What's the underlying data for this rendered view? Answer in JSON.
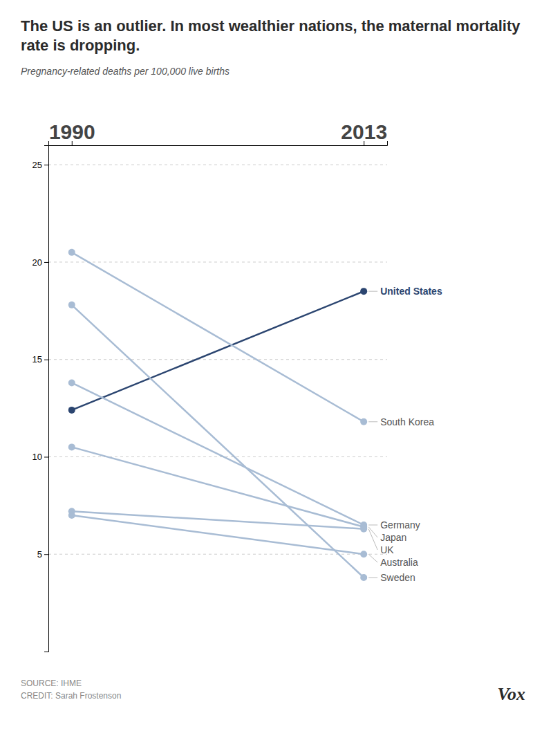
{
  "chart_data": {
    "type": "slope",
    "title": "The US is an outlier. In most wealthier nations, the maternal mortality rate is dropping.",
    "subtitle": "Pregnancy-related deaths per 100,000 live births",
    "categories": [
      "1990",
      "2013"
    ],
    "series": [
      {
        "name": "United States",
        "color": "#2b4570",
        "values": [
          12.4,
          18.5
        ]
      },
      {
        "name": "South Korea",
        "color": "#a8bcd4",
        "values": [
          20.5,
          11.8
        ]
      },
      {
        "name": "Germany",
        "color": "#a8bcd4",
        "values": [
          13.8,
          6.5
        ]
      },
      {
        "name": "Japan",
        "color": "#a8bcd4",
        "values": [
          10.5,
          6.4
        ]
      },
      {
        "name": "UK",
        "color": "#a8bcd4",
        "values": [
          7.2,
          6.3
        ]
      },
      {
        "name": "Australia",
        "color": "#a8bcd4",
        "values": [
          7.0,
          5.0
        ]
      },
      {
        "name": "Sweden",
        "color": "#a8bcd4",
        "values": [
          17.8,
          3.8
        ]
      }
    ],
    "ylim": [
      0,
      26
    ],
    "yticks": [
      5,
      10,
      15,
      20,
      25
    ],
    "grid": true,
    "marker": "circle",
    "annotations": [
      "SOURCE: IHME",
      "CREDIT: Sarah Frostenson",
      "Vox"
    ]
  }
}
